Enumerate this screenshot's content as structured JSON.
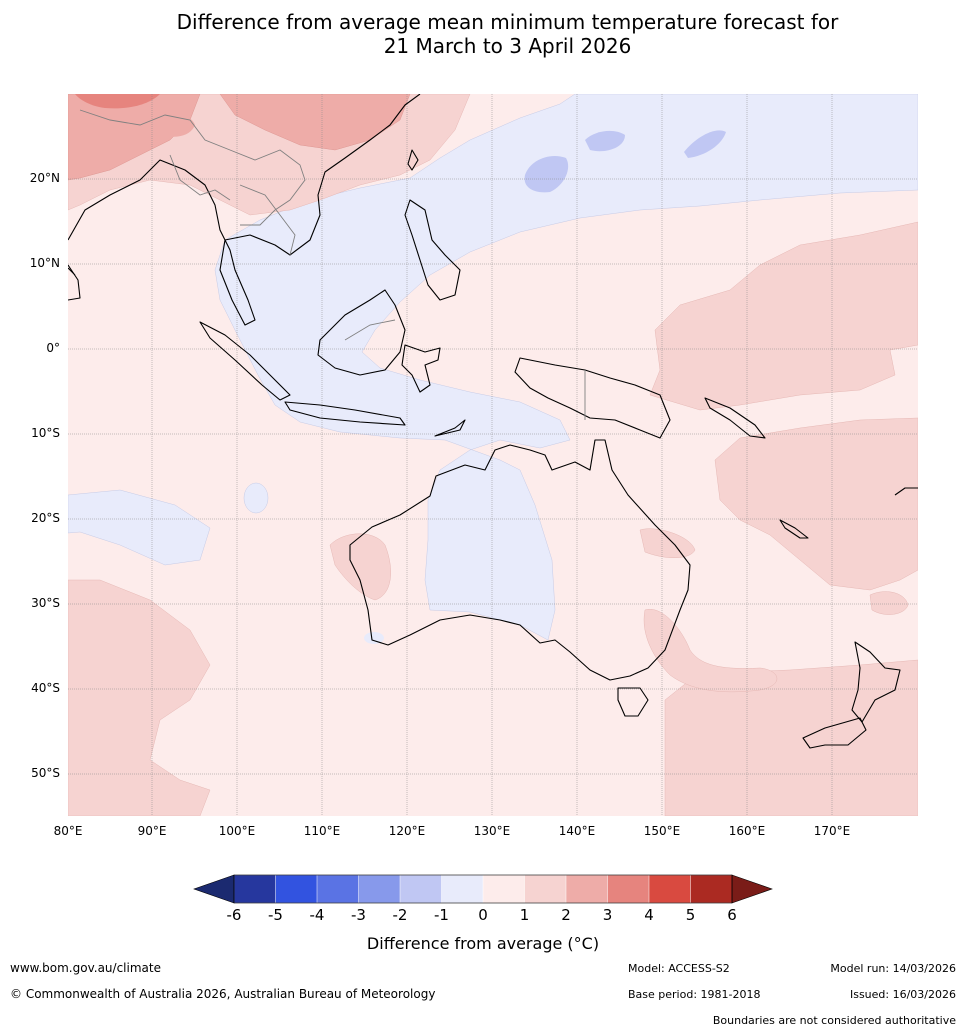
{
  "title": {
    "line1": "Difference from average mean minimum temperature forecast for",
    "line2": "21 March to 3 April 2026"
  },
  "axes": {
    "lat_labels": [
      "20°N",
      "10°N",
      "0°",
      "10°S",
      "20°S",
      "30°S",
      "40°S",
      "50°S"
    ],
    "lon_labels": [
      "80°E",
      "90°E",
      "100°E",
      "110°E",
      "120°E",
      "130°E",
      "140°E",
      "150°E",
      "160°E",
      "170°E"
    ]
  },
  "colorbar": {
    "ticks": [
      "-6",
      "-5",
      "-4",
      "-3",
      "-2",
      "-1",
      "0",
      "1",
      "2",
      "3",
      "4",
      "5",
      "6"
    ],
    "colors": [
      "#26379e",
      "#3253e0",
      "#5a73e4",
      "#8799eb",
      "#c0c7f3",
      "#e8ebfb",
      "#fdeceb",
      "#f6d3d1",
      "#eeaca8",
      "#e6847e",
      "#d94a40",
      "#ab2a22"
    ],
    "low_color": "#1b2a70",
    "high_color": "#7a1c18",
    "title": "Difference from average (°C)"
  },
  "footer": {
    "url": "www.bom.gov.au/climate",
    "copyright": "© Commonwealth of Australia 2026, Australian Bureau of Meteorology",
    "model": "Model: ACCESS-S2",
    "model_run": "Model run: 14/03/2026",
    "base_period": "Base period: 1981-2018",
    "issued": "Issued: 16/03/2026",
    "disclaimer": "Boundaries are not considered authoritative"
  }
}
